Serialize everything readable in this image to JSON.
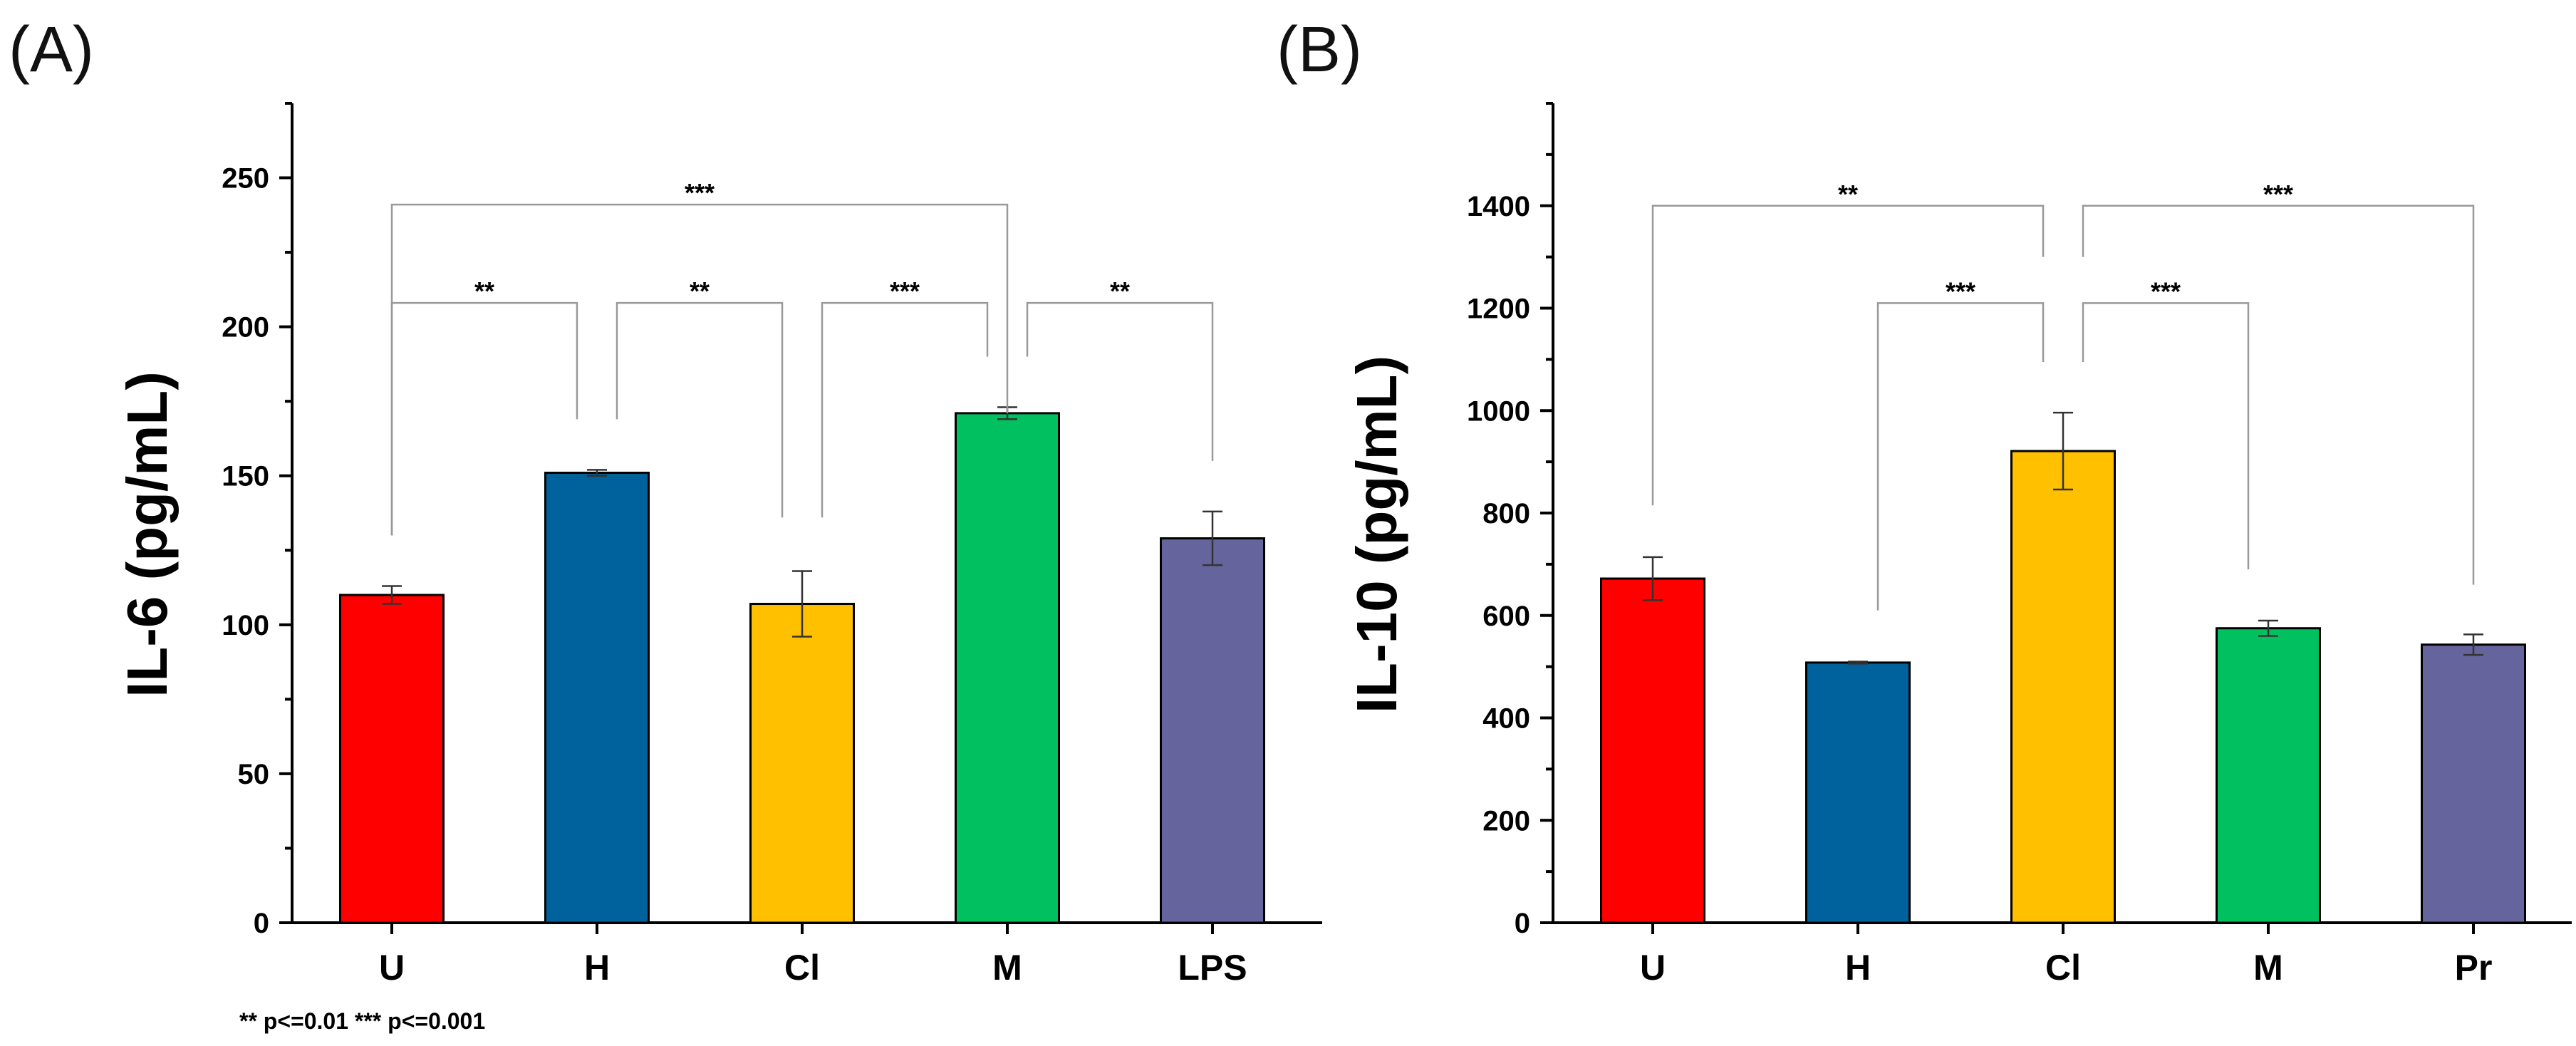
{
  "chart_data": [
    {
      "type": "bar",
      "panel_label": "(A)",
      "title": "",
      "xlabel": "",
      "ylabel": "IL-6 (pg/mL)",
      "ylim": [
        0,
        275
      ],
      "yticks": [
        0,
        50,
        100,
        150,
        200,
        250
      ],
      "categories": [
        "U",
        "H",
        "Cl",
        "M",
        "LPS"
      ],
      "values": [
        110,
        151,
        107,
        171,
        129
      ],
      "errors": [
        3,
        1,
        11,
        2,
        9
      ],
      "colors": [
        "#ff0000",
        "#00629c",
        "#ffc000",
        "#00c060",
        "#66649c"
      ],
      "significance": [
        {
          "from": 0,
          "to": 3,
          "label": "***",
          "y": 241,
          "drop_from": 130,
          "drop_to": 171
        },
        {
          "from": 0,
          "to": 1,
          "label": "**",
          "y": 208,
          "drop_from": 130,
          "drop_to": 169
        },
        {
          "from": 1,
          "to": 2,
          "label": "**",
          "y": 208,
          "drop_from": 169,
          "drop_to": 136
        },
        {
          "from": 2,
          "to": 3,
          "label": "***",
          "y": 208,
          "drop_from": 136,
          "drop_to": 190
        },
        {
          "from": 3,
          "to": 4,
          "label": "**",
          "y": 208,
          "drop_from": 190,
          "drop_to": 155
        }
      ],
      "footnote": "** p<=0.01     *** p<=0.001"
    },
    {
      "type": "bar",
      "panel_label": "(B)",
      "title": "",
      "xlabel": "",
      "ylabel": "IL-10 (pg/mL)",
      "ylim": [
        0,
        1600
      ],
      "yticks": [
        0,
        200,
        400,
        600,
        800,
        1000,
        1200,
        1400
      ],
      "categories": [
        "U",
        "H",
        "Cl",
        "M",
        "Pr"
      ],
      "values": [
        672,
        508,
        921,
        575,
        543
      ],
      "errors": [
        42,
        2,
        75,
        15,
        20
      ],
      "colors": [
        "#ff0000",
        "#00629c",
        "#ffc000",
        "#00c060",
        "#66649c"
      ],
      "significance": [
        {
          "from": 0,
          "to": 2,
          "label": "**",
          "y": 1400,
          "drop_from": 815,
          "drop_to": 1300
        },
        {
          "from": 2,
          "to": 4,
          "label": "***",
          "y": 1400,
          "drop_from": 1300,
          "drop_to": 660
        },
        {
          "from": 1,
          "to": 2,
          "label": "***",
          "y": 1210,
          "drop_from": 610,
          "drop_to": 1095
        },
        {
          "from": 2,
          "to": 3,
          "label": "***",
          "y": 1210,
          "drop_from": 1095,
          "drop_to": 690
        }
      ]
    }
  ]
}
